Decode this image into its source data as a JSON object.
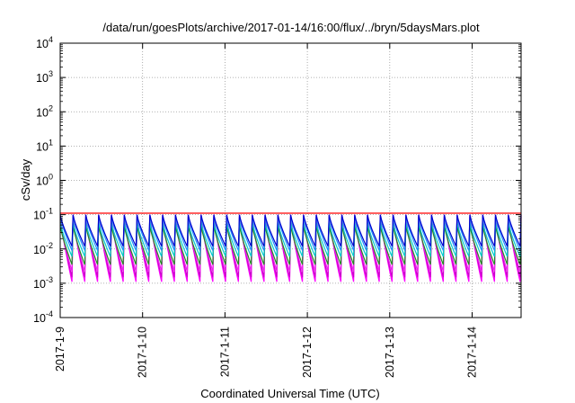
{
  "chart_data": {
    "type": "line",
    "title": "/data/run/goesPlots/archive/2017-01-14/16:00/flux/../bryn/5daysMars.plot",
    "xlabel": "Coordinated Universal Time (UTC)",
    "ylabel": "cSv/day",
    "yscale": "log",
    "ylim": [
      0.0001,
      10000
    ],
    "xlim": [
      "2017-01-09 00:00",
      "2017-01-14 16:00"
    ],
    "grid": true,
    "x_ticks": [
      "2017-1-9",
      "2017-1-10",
      "2017-1-11",
      "2017-1-12",
      "2017-1-13",
      "2017-1-14"
    ],
    "y_ticks": [
      {
        "base": "10",
        "exp": "-4",
        "value": 0.0001
      },
      {
        "base": "10",
        "exp": "-3",
        "value": 0.001
      },
      {
        "base": "10",
        "exp": "-2",
        "value": 0.01
      },
      {
        "base": "10",
        "exp": "-1",
        "value": 0.1
      },
      {
        "base": "10",
        "exp": "0",
        "value": 1
      },
      {
        "base": "10",
        "exp": "1",
        "value": 10
      },
      {
        "base": "10",
        "exp": "2",
        "value": 100
      },
      {
        "base": "10",
        "exp": "3",
        "value": 1000
      },
      {
        "base": "10",
        "exp": "4",
        "value": 10000
      }
    ],
    "cycles_per_day": 6.4,
    "series": [
      {
        "color": "#ff00ff",
        "peak": 0.1,
        "trough": 0.0011
      },
      {
        "color": "#cc00cc",
        "peak": 0.085,
        "trough": 0.0015
      },
      {
        "color": "#ee22ee",
        "peak": 0.07,
        "trough": 0.0022
      },
      {
        "color": "#228b22",
        "peak": 0.05,
        "trough": 0.0035
      },
      {
        "color": "#00cccc",
        "peak": 0.06,
        "trough": 0.006
      },
      {
        "color": "#1e90ff",
        "peak": 0.09,
        "trough": 0.009
      },
      {
        "color": "#0000cd",
        "peak": 0.1,
        "trough": 0.012
      },
      {
        "color": "#ff0000",
        "peak": 0.11,
        "trough": 0.11
      }
    ]
  }
}
